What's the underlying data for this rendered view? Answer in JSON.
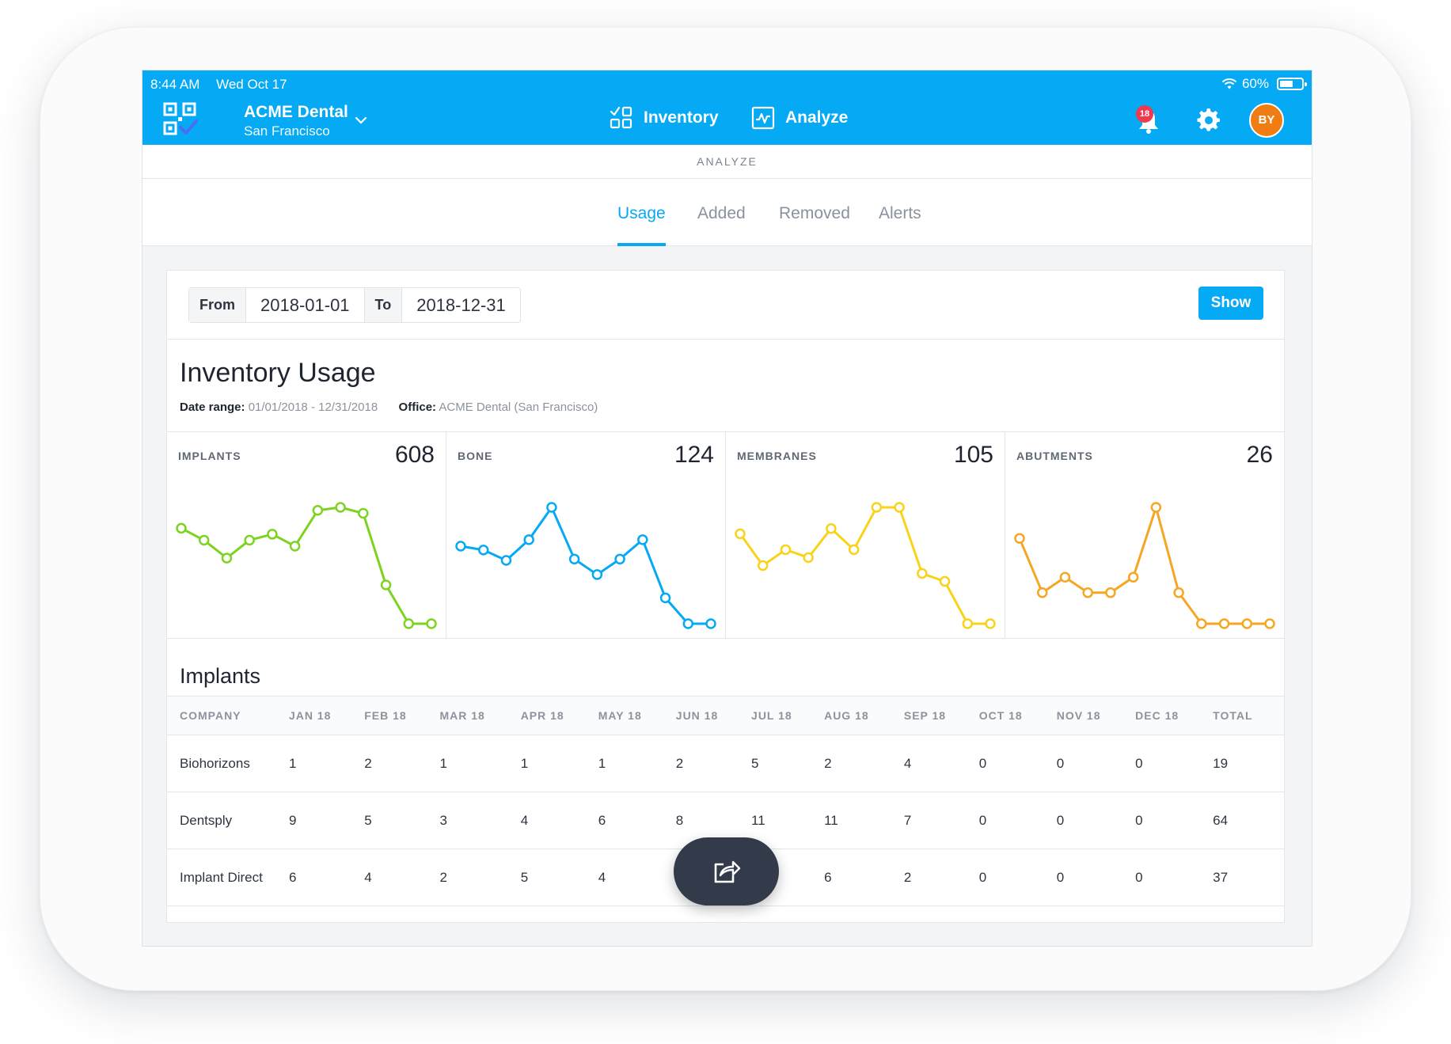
{
  "status_bar": {
    "time": "8:44 AM",
    "date": "Wed Oct 17",
    "battery": "60%"
  },
  "header": {
    "org_name": "ACME Dental",
    "org_location": "San Francisco",
    "nav": {
      "inventory": "Inventory",
      "analyze": "Analyze"
    },
    "notification_count": "18",
    "avatar_initials": "BY",
    "accent_color": "#06a9f4"
  },
  "subheader": "ANALYZE",
  "tabs": [
    "Usage",
    "Added",
    "Removed",
    "Alerts"
  ],
  "active_tab": "Usage",
  "filters": {
    "from_label": "From",
    "from_value": "2018-01-01",
    "to_label": "To",
    "to_value": "2018-12-31",
    "show_label": "Show"
  },
  "report": {
    "title": "Inventory Usage",
    "date_range_label": "Date range:",
    "date_range_value": "01/01/2018 - 12/31/2018",
    "office_label": "Office:",
    "office_value": "ACME Dental (San Francisco)"
  },
  "stats": [
    {
      "label": "IMPLANTS",
      "value": "608",
      "color": "#7ed321",
      "series": [
        16,
        14,
        11,
        14,
        15,
        13,
        19,
        19.5,
        18.5,
        6.5,
        0,
        0
      ]
    },
    {
      "label": "BONE",
      "value": "124",
      "color": "#06a9f4",
      "series": [
        6,
        5.7,
        4.9,
        6.5,
        9,
        5,
        3.8,
        5,
        6.5,
        2,
        0,
        0
      ]
    },
    {
      "label": "MEMBRANES",
      "value": "105",
      "color": "#f8d31a",
      "series": [
        17,
        11,
        14,
        12.5,
        18,
        14,
        22,
        22,
        9.5,
        8,
        0,
        0
      ]
    },
    {
      "label": "ABUTMENTS",
      "value": "26",
      "color": "#f5a623",
      "series": [
        5.5,
        2,
        3,
        2,
        2,
        3,
        7.5,
        2,
        0,
        0,
        0,
        0
      ]
    }
  ],
  "table": {
    "title": "Implants",
    "columns": [
      "COMPANY",
      "JAN 18",
      "FEB 18",
      "MAR 18",
      "APR 18",
      "MAY 18",
      "JUN 18",
      "JUL 18",
      "AUG 18",
      "SEP 18",
      "OCT 18",
      "NOV 18",
      "DEC 18",
      "TOTAL"
    ],
    "rows": [
      [
        "Biohorizons",
        "1",
        "2",
        "1",
        "1",
        "1",
        "2",
        "5",
        "2",
        "4",
        "0",
        "0",
        "0",
        "19"
      ],
      [
        "Dentsply",
        "9",
        "5",
        "3",
        "4",
        "6",
        "8",
        "11",
        "11",
        "7",
        "0",
        "0",
        "0",
        "64"
      ],
      [
        "Implant Direct",
        "6",
        "4",
        "2",
        "5",
        "4",
        "",
        "",
        "6",
        "2",
        "0",
        "0",
        "0",
        "37"
      ]
    ]
  }
}
